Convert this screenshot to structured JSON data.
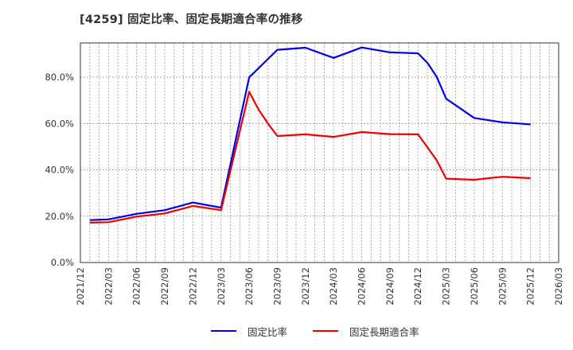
{
  "chart_data": {
    "type": "line",
    "title": "[4259]  固定比率、固定長期適合率の推移",
    "xlabel": "",
    "ylabel": "",
    "ylim": [
      0,
      95
    ],
    "y_ticks": [
      "0.0%",
      "20.0%",
      "40.0%",
      "60.0%",
      "80.0%"
    ],
    "y_tick_values": [
      0,
      20,
      40,
      60,
      80
    ],
    "x_ticks": [
      "2021/12",
      "2022/03",
      "2022/06",
      "2022/09",
      "2022/12",
      "2023/03",
      "2023/06",
      "2023/09",
      "2023/12",
      "2024/03",
      "2024/06",
      "2024/09",
      "2024/12",
      "2025/03",
      "2025/06",
      "2025/09",
      "2025/12",
      "2026/03"
    ],
    "grid": true,
    "legend_position": "bottom",
    "series": [
      {
        "name": "固定比率",
        "color": "#0000ee",
        "x": [
          "2022/01",
          "2022/03",
          "2022/06",
          "2022/09",
          "2022/12",
          "2023/03",
          "2023/06",
          "2023/09",
          "2023/12",
          "2024/03",
          "2024/06",
          "2024/09",
          "2024/12",
          "2025/01",
          "2025/02",
          "2025/03",
          "2025/06",
          "2025/09",
          "2025/12"
        ],
        "month_index": [
          1,
          3,
          6,
          9,
          12,
          15,
          18,
          21,
          24,
          27,
          30,
          33,
          36,
          37,
          38,
          39,
          42,
          45,
          48
        ],
        "values": [
          18.3,
          18.6,
          21.0,
          22.6,
          25.9,
          23.7,
          79.9,
          91.8,
          92.7,
          88.3,
          92.8,
          90.7,
          90.3,
          86.2,
          80.1,
          70.7,
          62.4,
          60.5,
          59.6
        ]
      },
      {
        "name": "固定長期適合率",
        "color": "#ee0000",
        "x": [
          "2022/01",
          "2022/03",
          "2022/06",
          "2022/09",
          "2022/12",
          "2023/03",
          "2023/06",
          "2023/07",
          "2023/08",
          "2023/09",
          "2023/12",
          "2024/03",
          "2024/06",
          "2024/09",
          "2024/12",
          "2025/01",
          "2025/02",
          "2025/03",
          "2025/06",
          "2025/09",
          "2025/12"
        ],
        "month_index": [
          1,
          3,
          6,
          9,
          12,
          15,
          18,
          19,
          20,
          21,
          24,
          27,
          30,
          33,
          36,
          37,
          38,
          39,
          42,
          45,
          48
        ],
        "values": [
          17.2,
          17.4,
          19.8,
          21.2,
          24.4,
          22.6,
          73.7,
          66.0,
          60.0,
          54.6,
          55.3,
          54.2,
          56.3,
          55.4,
          55.3,
          49.8,
          44.1,
          36.2,
          35.7,
          37.0,
          36.4
        ]
      }
    ]
  },
  "legend": {
    "items": [
      {
        "label": "固定比率",
        "color": "#0000ee"
      },
      {
        "label": "固定長期適合率",
        "color": "#ee0000"
      }
    ]
  }
}
